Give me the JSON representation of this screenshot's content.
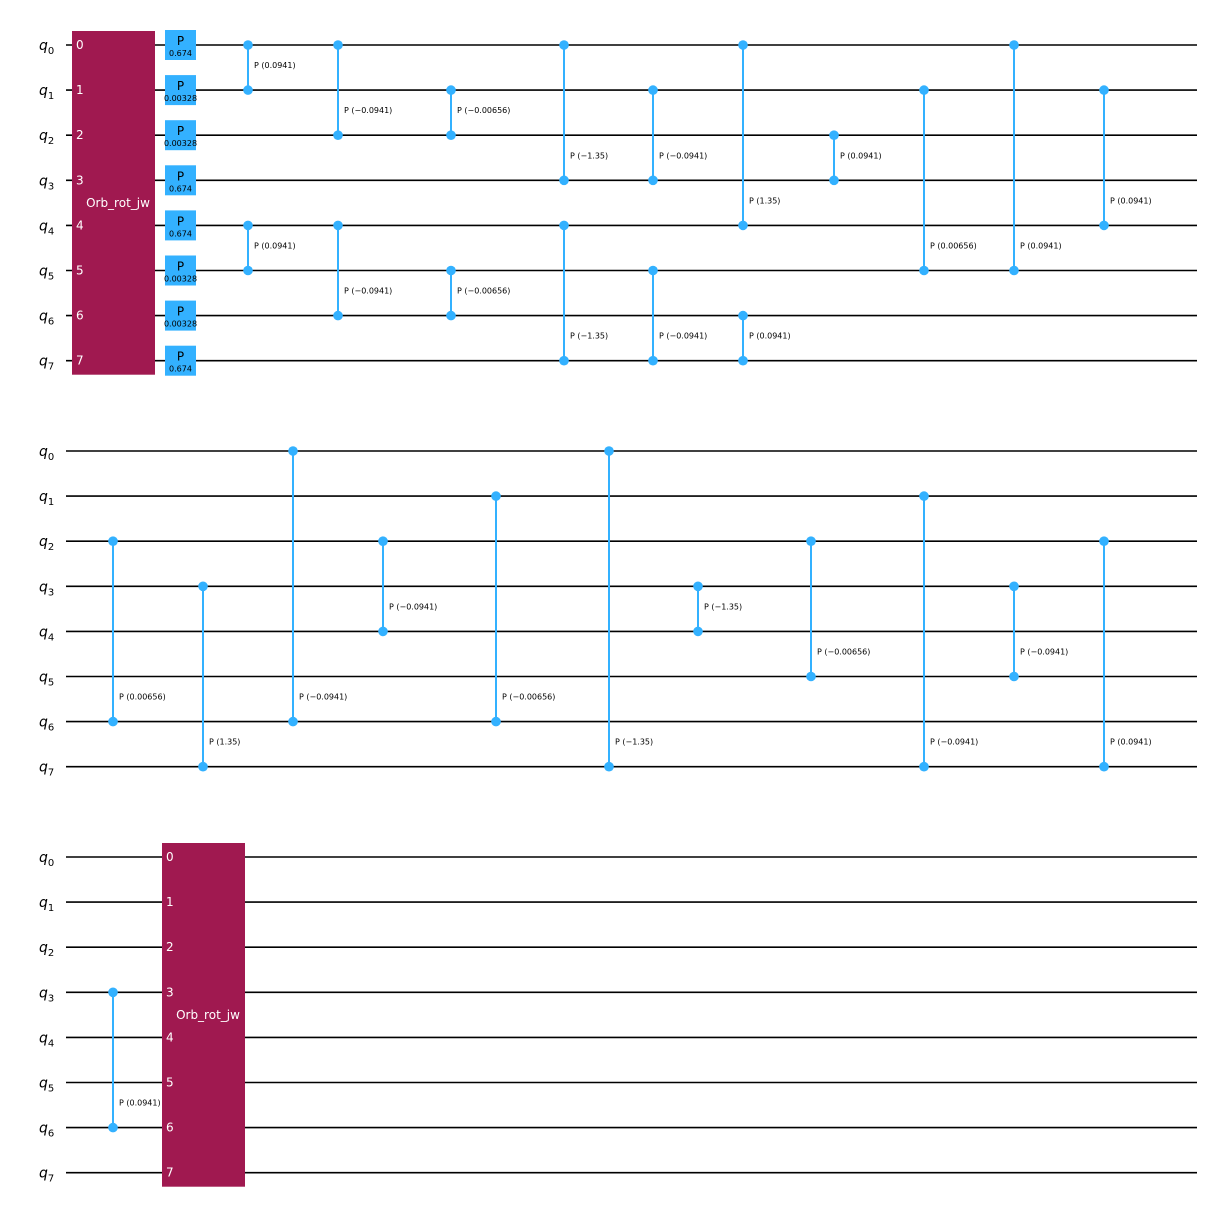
{
  "colors": {
    "orb_block": "#a01950",
    "phase_gate": "#33b1ff",
    "wire": "#000000"
  },
  "qubits": [
    "q0",
    "q1",
    "q2",
    "q3",
    "q4",
    "q5",
    "q6",
    "q7"
  ],
  "block_name": "Orb_rot_jw",
  "block_indices": [
    "0",
    "1",
    "2",
    "3",
    "4",
    "5",
    "6",
    "7"
  ],
  "phase_gate_name": "P",
  "phase_gates": [
    {
      "qubit": 0,
      "param": "0.674"
    },
    {
      "qubit": 1,
      "param": "0.00328"
    },
    {
      "qubit": 2,
      "param": "0.00328"
    },
    {
      "qubit": 3,
      "param": "0.674"
    },
    {
      "qubit": 4,
      "param": "0.674"
    },
    {
      "qubit": 5,
      "param": "0.00328"
    },
    {
      "qubit": 6,
      "param": "0.00328"
    },
    {
      "qubit": 7,
      "param": "0.674"
    }
  ],
  "rows": [
    {
      "leading_block": true,
      "trailing_block": false,
      "controlled_phases": [
        {
          "col": 0,
          "a": 0,
          "b": 1,
          "label": "P (0.0941)"
        },
        {
          "col": 0,
          "a": 4,
          "b": 5,
          "label": "P (0.0941)"
        },
        {
          "col": 1,
          "a": 0,
          "b": 2,
          "label": "P (−0.0941)"
        },
        {
          "col": 1,
          "a": 4,
          "b": 6,
          "label": "P (−0.0941)"
        },
        {
          "col": 2,
          "a": 1,
          "b": 2,
          "label": "P (−0.00656)"
        },
        {
          "col": 2,
          "a": 5,
          "b": 6,
          "label": "P (−0.00656)"
        },
        {
          "col": 3,
          "a": 0,
          "b": 3,
          "label": "P (−1.35)"
        },
        {
          "col": 3,
          "a": 4,
          "b": 7,
          "label": "P (−1.35)"
        },
        {
          "col": 4,
          "a": 1,
          "b": 3,
          "label": "P (−0.0941)"
        },
        {
          "col": 4,
          "a": 5,
          "b": 7,
          "label": "P (−0.0941)"
        },
        {
          "col": 5,
          "a": 0,
          "b": 4,
          "label": "P (1.35)"
        },
        {
          "col": 5,
          "a": 6,
          "b": 7,
          "label": "P (0.0941)"
        },
        {
          "col": 6,
          "a": 2,
          "b": 3,
          "label": "P (0.0941)"
        },
        {
          "col": 7,
          "a": 1,
          "b": 5,
          "label": "P (0.00656)"
        },
        {
          "col": 8,
          "a": 0,
          "b": 5,
          "label": "P (0.0941)"
        },
        {
          "col": 9,
          "a": 1,
          "b": 4,
          "label": "P (0.0941)"
        }
      ]
    },
    {
      "leading_block": false,
      "trailing_block": false,
      "controlled_phases": [
        {
          "col": 0,
          "a": 2,
          "b": 6,
          "label": "P (0.00656)"
        },
        {
          "col": 1,
          "a": 3,
          "b": 7,
          "label": "P (1.35)"
        },
        {
          "col": 2,
          "a": 0,
          "b": 6,
          "label": "P (−0.0941)"
        },
        {
          "col": 3,
          "a": 2,
          "b": 4,
          "label": "P (−0.0941)"
        },
        {
          "col": 4,
          "a": 1,
          "b": 6,
          "label": "P (−0.00656)"
        },
        {
          "col": 5,
          "a": 0,
          "b": 7,
          "label": "P (−1.35)"
        },
        {
          "col": 6,
          "a": 3,
          "b": 4,
          "label": "P (−1.35)"
        },
        {
          "col": 7,
          "a": 2,
          "b": 5,
          "label": "P (−0.00656)"
        },
        {
          "col": 8,
          "a": 1,
          "b": 7,
          "label": "P (−0.0941)"
        },
        {
          "col": 9,
          "a": 3,
          "b": 5,
          "label": "P (−0.0941)"
        },
        {
          "col": 10,
          "a": 2,
          "b": 7,
          "label": "P (0.0941)"
        }
      ]
    },
    {
      "leading_block": false,
      "trailing_block": true,
      "controlled_phases": [
        {
          "col": 0,
          "a": 3,
          "b": 6,
          "label": "P (0.0941)"
        }
      ]
    }
  ]
}
